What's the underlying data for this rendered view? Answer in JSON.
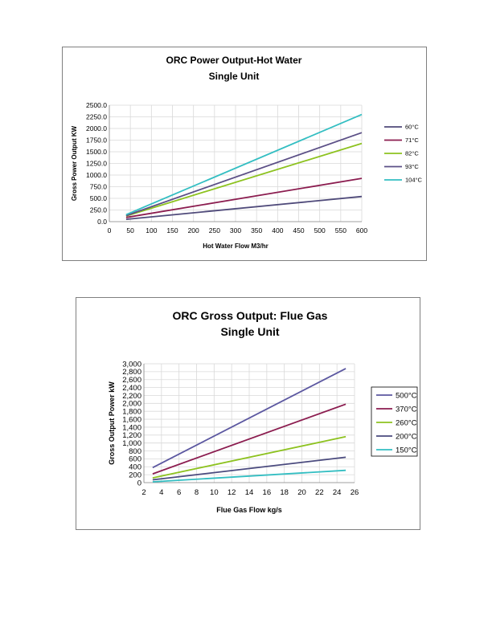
{
  "chart_data": [
    {
      "type": "line",
      "title": "ORC Power Output-Hot Water",
      "subtitle": "Single Unit",
      "xlabel": "Hot Water Flow M3/hr",
      "ylabel": "Gross Power Output KW",
      "xlim": [
        0,
        600
      ],
      "ylim": [
        0,
        2500
      ],
      "xticks": [
        "0",
        "50",
        "100",
        "150",
        "200",
        "250",
        "300",
        "350",
        "400",
        "450",
        "500",
        "550",
        "600"
      ],
      "yticks": [
        "0.0",
        "250.0",
        "500.0",
        "750.0",
        "1000.0",
        "1250.0",
        "1500.0",
        "1750.0",
        "2000.0",
        "2250.0",
        "2500.0"
      ],
      "grid": true,
      "legend_position": "right",
      "series": [
        {
          "name": "60°C",
          "color": "#4f4a7a",
          "x": [
            40,
            600
          ],
          "y": [
            50,
            540
          ]
        },
        {
          "name": "71°C",
          "color": "#8b1c4f",
          "x": [
            40,
            600
          ],
          "y": [
            90,
            930
          ]
        },
        {
          "name": "82°C",
          "color": "#8dc21f",
          "x": [
            40,
            600
          ],
          "y": [
            120,
            1680
          ]
        },
        {
          "name": "93°C",
          "color": "#5b4f86",
          "x": [
            40,
            600
          ],
          "y": [
            130,
            1910
          ]
        },
        {
          "name": "104°C",
          "color": "#33bec2",
          "x": [
            40,
            600
          ],
          "y": [
            150,
            2300
          ]
        }
      ]
    },
    {
      "type": "line",
      "title": "ORC Gross Output: Flue Gas",
      "subtitle": "Single Unit",
      "xlabel": "Flue Gas Flow kg/s",
      "ylabel": "Gross Output Power kW",
      "xlim": [
        2,
        26
      ],
      "ylim": [
        0,
        3000
      ],
      "xticks": [
        "2",
        "4",
        "6",
        "8",
        "10",
        "12",
        "14",
        "16",
        "18",
        "20",
        "22",
        "24",
        "26"
      ],
      "yticks": [
        "0",
        "200",
        "400",
        "600",
        "800",
        "1,000",
        "1,200",
        "1,400",
        "1,600",
        "1,800",
        "2,000",
        "2,200",
        "2,400",
        "2,600",
        "2,800",
        "3,000"
      ],
      "grid": true,
      "legend_position": "right",
      "series": [
        {
          "name": "500°C",
          "color": "#5b57a0",
          "x": [
            3,
            25
          ],
          "y": [
            380,
            2880
          ]
        },
        {
          "name": "370°C",
          "color": "#8b1c4f",
          "x": [
            3,
            25
          ],
          "y": [
            220,
            1980
          ]
        },
        {
          "name": "260°C",
          "color": "#8dc21f",
          "x": [
            3,
            25
          ],
          "y": [
            120,
            1160
          ]
        },
        {
          "name": "200°C",
          "color": "#4a4a7e",
          "x": [
            3,
            25
          ],
          "y": [
            70,
            640
          ]
        },
        {
          "name": "150°C",
          "color": "#33bec2",
          "x": [
            3,
            25
          ],
          "y": [
            20,
            310
          ]
        }
      ]
    }
  ]
}
